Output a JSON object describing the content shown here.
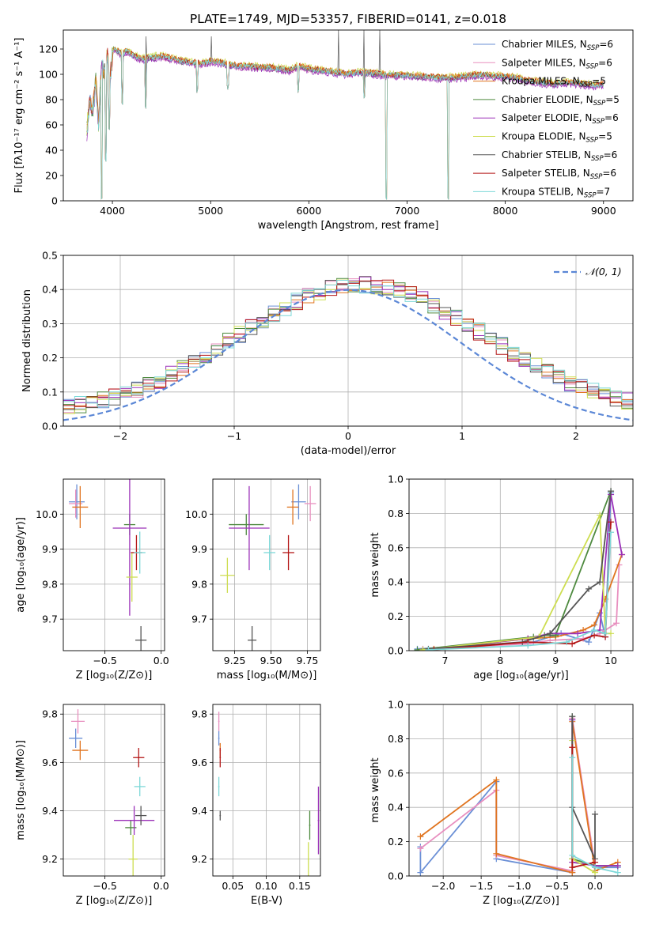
{
  "figure_title": "PLATE=1749, MJD=53357, FIBERID=0141, z=0.018",
  "colors": {
    "series": [
      "#6a8fd6",
      "#e88fbf",
      "#e0741f",
      "#4e8a3f",
      "#9b30b8",
      "#cddd50",
      "#555555",
      "#b41717",
      "#7dd8d8"
    ],
    "normal": "#5b87d6",
    "grid": "#b0b0b0"
  },
  "chart_data": [
    {
      "id": "spectrum",
      "type": "line",
      "title": "PLATE=1749, MJD=53357, FIBERID=0141, z=0.018",
      "xlabel": "wavelength [Angstrom, rest frame]",
      "ylabel": "Flux [fλ10⁻¹⁷ erg cm⁻² s⁻¹ A⁻¹]",
      "xlim": [
        3500,
        9300
      ],
      "ylim": [
        0,
        135
      ],
      "xticks": [
        4000,
        5000,
        6000,
        7000,
        8000,
        9000
      ],
      "yticks": [
        0,
        20,
        40,
        60,
        80,
        100,
        120
      ],
      "grid": false,
      "legend_position": "upper-right",
      "legend": [
        "Chabrier MILES, N_SSP=6",
        "Salpeter MILES, N_SSP=6",
        "Kroupa MILES, N_SSP=5",
        "Chabrier ELODIE, N_SSP=5",
        "Salpeter ELODIE, N_SSP=6",
        "Kroupa ELODIE, N_SSP=5",
        "Chabrier STELIB, N_SSP=6",
        "Salpeter STELIB, N_SSP=6",
        "Kroupa STELIB, N_SSP=7"
      ],
      "envelope": {
        "x": [
          3740,
          3770,
          3800,
          3830,
          3860,
          3890,
          3920,
          3950,
          3980,
          4010,
          4050,
          4100,
          4150,
          4200,
          4300,
          4400,
          4500,
          4600,
          4700,
          4800,
          4900,
          5000,
          5100,
          5200,
          5300,
          5400,
          5500,
          5600,
          5700,
          5800,
          5900,
          6000,
          6100,
          6200,
          6300,
          6400,
          6500,
          6600,
          6700,
          6800,
          6900,
          7000,
          7100,
          7200,
          7300,
          7400,
          7500,
          7600,
          7700,
          7800,
          7900,
          8000,
          8100,
          8200,
          8300,
          8400,
          8500,
          8600,
          8700,
          8800,
          8900,
          9000
        ],
        "y": [
          55,
          80,
          70,
          95,
          60,
          110,
          100,
          115,
          100,
          120,
          118,
          116,
          118,
          115,
          112,
          113,
          114,
          112,
          110,
          109,
          108,
          110,
          109,
          107,
          106,
          106,
          105,
          105,
          104,
          103,
          106,
          104,
          103,
          102,
          101,
          100,
          101,
          101,
          100,
          99,
          99,
          99,
          98,
          98,
          97,
          97,
          97,
          98,
          99,
          99,
          98,
          98,
          97,
          95,
          94,
          93,
          92,
          93,
          93,
          92,
          91,
          92
        ]
      },
      "dips": [
        {
          "x": 3890,
          "y": 0
        },
        {
          "x": 3934,
          "y": 30
        },
        {
          "x": 3968,
          "y": 55
        },
        {
          "x": 4102,
          "y": 75
        },
        {
          "x": 4340,
          "y": 72
        },
        {
          "x": 4861,
          "y": 85
        },
        {
          "x": 5175,
          "y": 88
        },
        {
          "x": 5890,
          "y": 85
        },
        {
          "x": 6563,
          "y": 80
        },
        {
          "x": 6790,
          "y": 0
        },
        {
          "x": 7420,
          "y": 0
        }
      ],
      "spikes": [
        {
          "x": 3727,
          "y": 135
        },
        {
          "x": 4340,
          "y": 130
        },
        {
          "x": 5007,
          "y": 130
        },
        {
          "x": 6300,
          "y": 135
        },
        {
          "x": 6563,
          "y": 135
        },
        {
          "x": 6720,
          "y": 135
        }
      ],
      "series_offsets": [
        0.0,
        -0.8,
        1.2,
        0.5,
        -1.5,
        2.0,
        -0.3,
        0.9,
        0.3
      ]
    },
    {
      "id": "residuals",
      "type": "step",
      "xlabel": "(data-model)/error",
      "ylabel": "Normed distribution",
      "xlim": [
        -2.5,
        2.5
      ],
      "ylim": [
        0,
        0.5
      ],
      "xticks": [
        -2,
        -1,
        0,
        1,
        2
      ],
      "yticks": [
        0.0,
        0.1,
        0.2,
        0.3,
        0.4,
        0.5
      ],
      "grid": true,
      "legend": "𝒩(0, 1)",
      "legend_position": "upper-right",
      "bin_width": 0.1
    },
    {
      "id": "age_vs_Z",
      "type": "errorbar",
      "xlabel": "Z [log₁₀(Z/Z⊙)]",
      "ylabel": "age  [log₁₀(age/yr)]",
      "xlim": [
        -0.87,
        0.03
      ],
      "ylim": [
        9.61,
        10.1
      ],
      "xticks": [
        -0.5,
        0.0
      ],
      "yticks": [
        9.7,
        9.8,
        9.9,
        10.0
      ],
      "grid": true,
      "points": [
        {
          "x": -0.75,
          "y": 10.035,
          "xerr": 0.07,
          "yerr": 0.05
        },
        {
          "x": -0.76,
          "y": 10.03,
          "xerr": 0.06,
          "yerr": 0.04
        },
        {
          "x": -0.72,
          "y": 10.02,
          "xerr": 0.07,
          "yerr": 0.06
        },
        {
          "x": -0.28,
          "y": 9.97,
          "xerr": 0.05,
          "yerr": 0.03
        },
        {
          "x": -0.28,
          "y": 9.96,
          "xerr": 0.15,
          "yerr": 0.25
        },
        {
          "x": -0.26,
          "y": 9.82,
          "xerr": 0.05,
          "yerr": 0.07
        },
        {
          "x": -0.18,
          "y": 9.64,
          "xerr": 0.05,
          "yerr": 0.04
        },
        {
          "x": -0.22,
          "y": 9.89,
          "xerr": 0.05,
          "yerr": 0.05
        },
        {
          "x": -0.19,
          "y": 9.89,
          "xerr": 0.05,
          "yerr": 0.06
        }
      ]
    },
    {
      "id": "age_vs_mass",
      "type": "errorbar",
      "xlabel": "mass [log₁₀(M/M⊙)]",
      "ylabel": "",
      "xlim": [
        9.1,
        9.84
      ],
      "ylim": [
        9.61,
        10.1
      ],
      "xticks": [
        9.25,
        9.5,
        9.75
      ],
      "yticks": [
        9.7,
        9.8,
        9.9,
        10.0
      ],
      "grid": true,
      "points": [
        {
          "x": 9.69,
          "y": 10.035,
          "xerr": 0.05,
          "yerr": 0.05
        },
        {
          "x": 9.77,
          "y": 10.03,
          "xerr": 0.04,
          "yerr": 0.05
        },
        {
          "x": 9.65,
          "y": 10.02,
          "xerr": 0.04,
          "yerr": 0.05
        },
        {
          "x": 9.33,
          "y": 9.97,
          "xerr": 0.12,
          "yerr": 0.03
        },
        {
          "x": 9.35,
          "y": 9.96,
          "xerr": 0.14,
          "yerr": 0.12
        },
        {
          "x": 9.2,
          "y": 9.825,
          "xerr": 0.05,
          "yerr": 0.05
        },
        {
          "x": 9.37,
          "y": 9.64,
          "xerr": 0.03,
          "yerr": 0.04
        },
        {
          "x": 9.62,
          "y": 9.89,
          "xerr": 0.04,
          "yerr": 0.05
        },
        {
          "x": 9.49,
          "y": 9.89,
          "xerr": 0.04,
          "yerr": 0.05
        }
      ]
    },
    {
      "id": "mass_weight_vs_age",
      "type": "line",
      "xlabel": "age  [log₁₀(age/yr)]",
      "ylabel": "mass weight",
      "xlim": [
        6.35,
        10.4
      ],
      "ylim": [
        0,
        1.0
      ],
      "xticks": [
        7,
        8,
        9,
        10
      ],
      "yticks": [
        0.0,
        0.2,
        0.4,
        0.6,
        0.8,
        1.0
      ],
      "grid": true,
      "series": [
        {
          "x": [
            6.5,
            8.6,
            9.1,
            9.6,
            9.8,
            9.9,
            10.0
          ],
          "y": [
            0.01,
            0.05,
            0.1,
            0.05,
            0.22,
            0.08,
            0.92
          ]
        },
        {
          "x": [
            6.6,
            8.5,
            8.9,
            9.5,
            9.8,
            10.1,
            10.15
          ],
          "y": [
            0.01,
            0.04,
            0.06,
            0.07,
            0.1,
            0.16,
            0.5
          ]
        },
        {
          "x": [
            6.8,
            8.5,
            9.0,
            9.5,
            9.7,
            9.9,
            10.2
          ],
          "y": [
            0.01,
            0.07,
            0.08,
            0.12,
            0.15,
            0.3,
            0.56
          ]
        },
        {
          "x": [
            6.5,
            8.6,
            8.8,
            9.0,
            10.0
          ],
          "y": [
            0.005,
            0.08,
            0.09,
            0.09,
            0.93
          ]
        },
        {
          "x": [
            6.6,
            8.5,
            8.9,
            9.4,
            9.8,
            10.0,
            10.2
          ],
          "y": [
            0.005,
            0.07,
            0.1,
            0.1,
            0.12,
            0.91,
            0.56
          ]
        },
        {
          "x": [
            6.6,
            8.7,
            9.8,
            9.9,
            10.0
          ],
          "y": [
            0.005,
            0.08,
            0.79,
            0.1,
            0.1
          ]
        },
        {
          "x": [
            6.7,
            8.4,
            8.9,
            9.6,
            9.8,
            10.0
          ],
          "y": [
            0.01,
            0.05,
            0.1,
            0.36,
            0.4,
            0.93
          ]
        },
        {
          "x": [
            6.8,
            8.5,
            9.3,
            9.7,
            9.9,
            10.0
          ],
          "y": [
            0.005,
            0.05,
            0.04,
            0.09,
            0.08,
            0.75
          ]
        },
        {
          "x": [
            6.7,
            8.5,
            9.2,
            9.7,
            9.9,
            10.0
          ],
          "y": [
            0.005,
            0.03,
            0.05,
            0.12,
            0.1,
            0.69
          ]
        }
      ]
    },
    {
      "id": "mass_vs_Z",
      "type": "errorbar",
      "xlabel": "Z [log₁₀(Z/Z⊙)]",
      "ylabel": "mass [log₁₀(M/M⊙)]",
      "xlim": [
        -0.87,
        0.03
      ],
      "ylim": [
        9.13,
        9.84
      ],
      "xticks": [
        -0.5,
        0.0
      ],
      "yticks": [
        9.2,
        9.4,
        9.6,
        9.8
      ],
      "grid": true,
      "points": [
        {
          "x": -0.76,
          "y": 9.7,
          "xerr": 0.06,
          "yerr": 0.04
        },
        {
          "x": -0.74,
          "y": 9.77,
          "xerr": 0.06,
          "yerr": 0.05
        },
        {
          "x": -0.72,
          "y": 9.65,
          "xerr": 0.07,
          "yerr": 0.04
        },
        {
          "x": -0.27,
          "y": 9.33,
          "xerr": 0.05,
          "yerr": 0.03
        },
        {
          "x": -0.24,
          "y": 9.36,
          "xerr": 0.18,
          "yerr": 0.06
        },
        {
          "x": -0.25,
          "y": 9.2,
          "xerr": 0.04,
          "yerr": 0.1
        },
        {
          "x": -0.18,
          "y": 9.38,
          "xerr": 0.05,
          "yerr": 0.04
        },
        {
          "x": -0.2,
          "y": 9.62,
          "xerr": 0.05,
          "yerr": 0.04
        },
        {
          "x": -0.19,
          "y": 9.5,
          "xerr": 0.05,
          "yerr": 0.04
        }
      ]
    },
    {
      "id": "mass_vs_EBV",
      "type": "errorbar",
      "xlabel": "E(B-V)",
      "ylabel": "",
      "xlim": [
        0.02,
        0.181
      ],
      "ylim": [
        9.13,
        9.84
      ],
      "xticks": [
        0.05,
        0.1,
        0.15
      ],
      "yticks": [
        9.2,
        9.4,
        9.6,
        9.8
      ],
      "grid": true,
      "points": [
        {
          "x": 0.029,
          "y": 9.7,
          "xerr": 0.001,
          "yerr": 0.03
        },
        {
          "x": 0.029,
          "y": 9.77,
          "xerr": 0.001,
          "yerr": 0.04
        },
        {
          "x": 0.031,
          "y": 9.65,
          "xerr": 0.001,
          "yerr": 0.03
        },
        {
          "x": 0.165,
          "y": 9.34,
          "xerr": 0.001,
          "yerr": 0.06
        },
        {
          "x": 0.178,
          "y": 9.36,
          "xerr": 0.001,
          "yerr": 0.14
        },
        {
          "x": 0.163,
          "y": 9.2,
          "xerr": 0.001,
          "yerr": 0.07
        },
        {
          "x": 0.031,
          "y": 9.38,
          "xerr": 0.001,
          "yerr": 0.02
        },
        {
          "x": 0.031,
          "y": 9.62,
          "xerr": 0.001,
          "yerr": 0.04
        },
        {
          "x": 0.029,
          "y": 9.5,
          "xerr": 0.001,
          "yerr": 0.04
        }
      ]
    },
    {
      "id": "mass_weight_vs_Z",
      "type": "line",
      "xlabel": "Z [log₁₀(Z/Z⊙)]",
      "ylabel": "mass weight",
      "xlim": [
        -2.45,
        0.5
      ],
      "ylim": [
        0,
        1.0
      ],
      "xticks": [
        -2.0,
        -1.5,
        -1.0,
        -0.5,
        0.0
      ],
      "yticks": [
        0.0,
        0.2,
        0.4,
        0.6,
        0.8,
        1.0
      ],
      "grid": true,
      "series": [
        {
          "x": [
            -2.3,
            -2.3,
            -1.3,
            -1.3,
            -0.3,
            -0.3,
            0.0,
            0.3
          ],
          "y": [
            0.17,
            0.02,
            0.55,
            0.1,
            0.02,
            0.91,
            0.05,
            0.05
          ]
        },
        {
          "x": [
            -2.3,
            -1.3,
            -1.3,
            -0.3,
            -0.3,
            0.0,
            0.3
          ],
          "y": [
            0.16,
            0.5,
            0.12,
            0.03,
            0.92,
            0.06,
            0.06
          ]
        },
        {
          "x": [
            -2.3,
            -1.3,
            -1.3,
            -0.3,
            -0.3,
            0.0,
            0.3
          ],
          "y": [
            0.23,
            0.56,
            0.13,
            0.02,
            0.9,
            0.03,
            0.08
          ]
        },
        {
          "x": [
            -0.3,
            -0.3,
            0.0,
            0.3
          ],
          "y": [
            0.93,
            0.1,
            0.06,
            0.06
          ]
        },
        {
          "x": [
            -0.3,
            -0.3,
            0.0,
            0.3
          ],
          "y": [
            0.91,
            0.08,
            0.06,
            0.06
          ]
        },
        {
          "x": [
            -0.3,
            -0.3,
            0.0
          ],
          "y": [
            0.79,
            0.1,
            0.02
          ]
        },
        {
          "x": [
            -0.3,
            -0.3,
            0.0,
            0.0
          ],
          "y": [
            0.93,
            0.4,
            0.1,
            0.36
          ]
        },
        {
          "x": [
            -0.3,
            -0.3,
            0.0
          ],
          "y": [
            0.75,
            0.05,
            0.08
          ]
        },
        {
          "x": [
            -0.3,
            -0.3,
            0.0,
            0.3
          ],
          "y": [
            0.69,
            0.12,
            0.05,
            0.02
          ]
        }
      ]
    }
  ]
}
